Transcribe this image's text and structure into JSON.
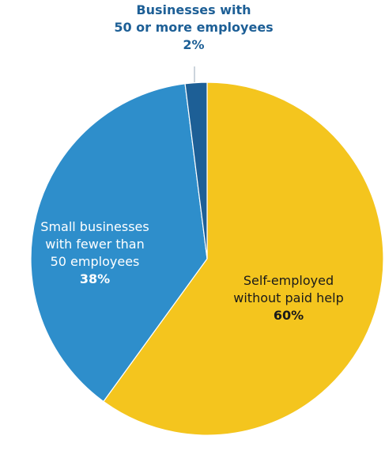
{
  "chart_data": {
    "type": "pie",
    "slices": [
      {
        "label_lines": [
          "Self-employed",
          "without paid help"
        ],
        "value": 60,
        "value_label": "60%",
        "color": "#f4c51e",
        "text_color": "#1a1a1a"
      },
      {
        "label_lines": [
          "Small businesses",
          "with fewer than",
          "50 employees"
        ],
        "value": 38,
        "value_label": "38%",
        "color": "#2e8ecb",
        "text_color": "#ffffff"
      },
      {
        "label_lines": [
          "Businesses with",
          "50 or more employees"
        ],
        "value": 2,
        "value_label": "2%",
        "color": "#1d5f96",
        "text_color": "#1d5f96"
      }
    ],
    "start_angle_deg": 0,
    "direction": "clockwise"
  }
}
